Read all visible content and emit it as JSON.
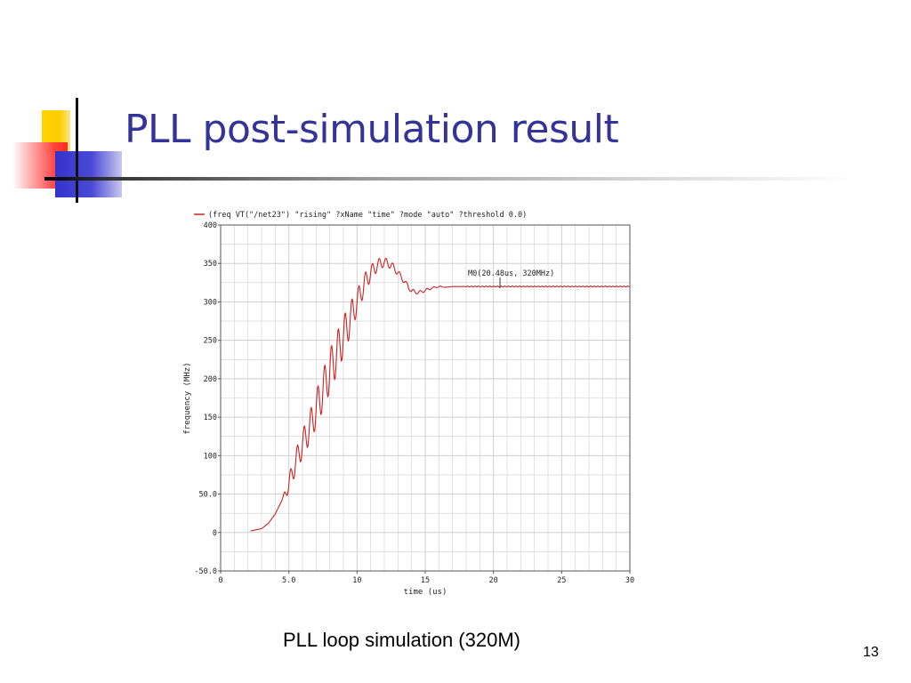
{
  "slide": {
    "title": "PLL post-simulation result",
    "caption": "PLL loop simulation (320M)",
    "page_number": "13"
  },
  "colors": {
    "title": "#333399",
    "trace": "#cc2222",
    "grid": "#cfcfcf"
  },
  "chart_data": {
    "type": "line",
    "legend": "(freq VT(\"/net23\") \"rising\" ?xName \"time\" ?mode \"auto\" ?threshold 0.0)",
    "xlabel": "time (us)",
    "ylabel": "frequency (MHz)",
    "xlim": [
      0,
      30
    ],
    "ylim": [
      -50,
      400
    ],
    "x_ticks": [
      "0",
      "5.0",
      "10",
      "15",
      "20",
      "25",
      "30"
    ],
    "y_ticks": [
      "-50.0",
      "0",
      "50.0",
      "100",
      "150",
      "200",
      "250",
      "300",
      "350",
      "400"
    ],
    "grid": true,
    "marker": {
      "label": "M0(20.48us, 320MHz)",
      "x": 20.48,
      "y": 320
    },
    "series": [
      {
        "x": [
          2.2,
          3.0,
          3.5,
          4.0,
          4.5,
          5.0,
          5.5,
          6.0,
          6.5,
          7.0,
          7.5,
          8.0,
          8.5,
          9.0,
          9.5,
          10.0,
          10.5,
          11.0,
          11.5,
          12.0,
          12.5,
          13.0,
          13.5,
          14.0,
          14.5,
          15.0,
          15.5,
          16.0,
          16.5,
          17.0,
          18.0,
          20.0,
          25.0,
          30.0
        ],
        "y": [
          2,
          5,
          12,
          24,
          42,
          62,
          92,
          115,
          135,
          160,
          185,
          210,
          232,
          255,
          278,
          300,
          322,
          338,
          348,
          352,
          348,
          338,
          326,
          314,
          312,
          315,
          318,
          320,
          319,
          320,
          320,
          320,
          320,
          320
        ],
        "oscillation": [
          0,
          0,
          0,
          0,
          0,
          12,
          15,
          18,
          20,
          24,
          26,
          28,
          28,
          26,
          22,
          16,
          14,
          10,
          8,
          6,
          5,
          4,
          3,
          3,
          2,
          2,
          1,
          1,
          0,
          0,
          0,
          0,
          0,
          0
        ]
      }
    ]
  }
}
